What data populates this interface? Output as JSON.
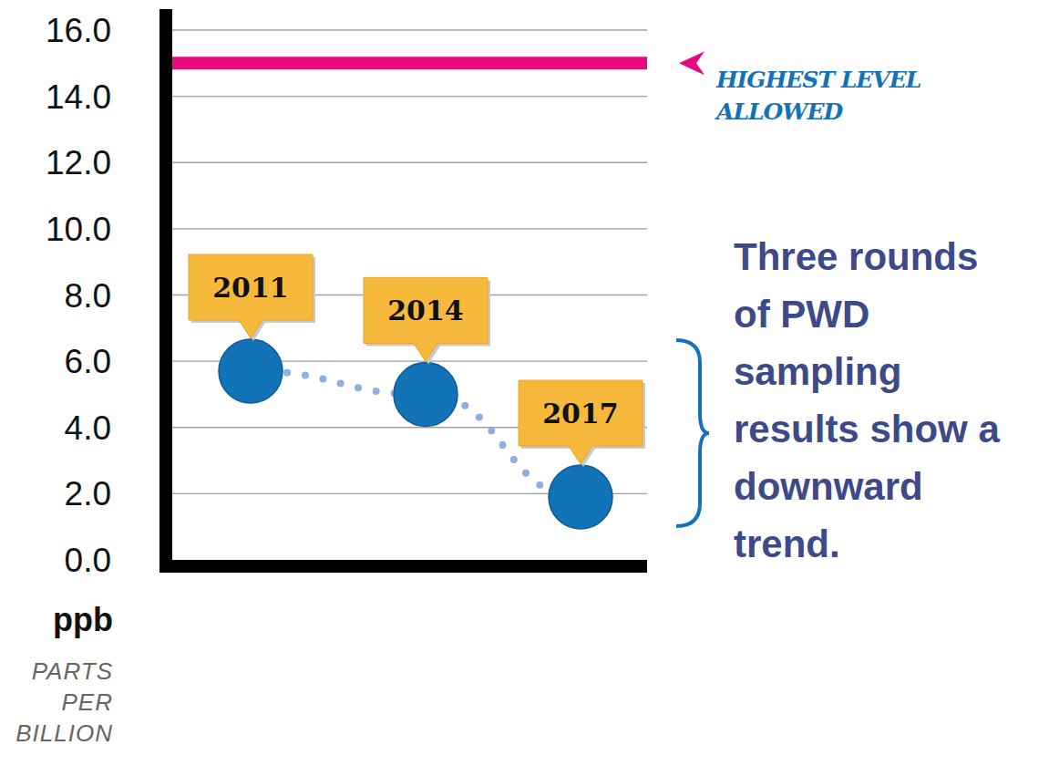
{
  "chart_data": {
    "type": "line",
    "categories": [
      "2011",
      "2014",
      "2017"
    ],
    "values": [
      5.7,
      5.0,
      1.9
    ],
    "color": "#1273b8",
    "marker": "circle",
    "line_style": "dotted",
    "ylim": [
      0,
      16
    ],
    "yticks": [
      {
        "value": 0,
        "label": "0.0"
      },
      {
        "value": 2,
        "label": "2.0"
      },
      {
        "value": 4,
        "label": "4.0"
      },
      {
        "value": 6,
        "label": "6.0"
      },
      {
        "value": 8,
        "label": "8.0"
      },
      {
        "value": 10,
        "label": "10.0"
      },
      {
        "value": 12,
        "label": "12.0"
      },
      {
        "value": 14,
        "label": "14.0"
      },
      {
        "value": 16,
        "label": "16.0"
      }
    ],
    "grid": true,
    "tick_labels": "y",
    "ylabel": "ppb",
    "ylabel_note": "PARTS PER BILLION",
    "annotations": [
      {
        "text": "HIGHEST LEVEL ALLOWED",
        "y": 15,
        "color": "#e8097f"
      },
      {
        "text": "Three rounds of PWD sampling results show a downward trend."
      }
    ]
  }
}
